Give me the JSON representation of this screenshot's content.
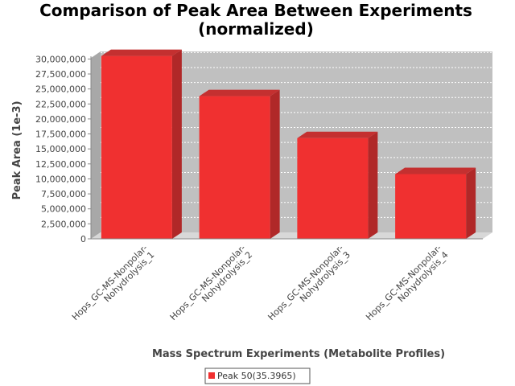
{
  "chart_data": {
    "type": "bar",
    "title": "Comparison of Peak Area Between Experiments",
    "subtitle": "(normalized)",
    "xlabel": "Mass Spectrum Experiments (Metabolite Profiles)",
    "ylabel": "Peak Area (1e-3)",
    "categories": [
      [
        "Hops_GC-MS-Nonpolar-",
        "Nohydrolysis_1"
      ],
      [
        "Hops_GC-MS-Nonpolar-",
        "Nohydrolysis_2"
      ],
      [
        "Hops_GC-MS-Nonpolar-",
        "Nohydrolysis_3"
      ],
      [
        "Hops_GC-MS-Nonpolar-",
        "Nohydrolysis_4"
      ]
    ],
    "series": [
      {
        "name": "Peak 50(35.3965)",
        "color": "#f03030",
        "values": [
          30500000,
          23800000,
          16800000,
          10800000
        ]
      }
    ],
    "ylim": [
      0,
      30000000
    ],
    "yticks": [
      0,
      2500000,
      5000000,
      7500000,
      10000000,
      12500000,
      15000000,
      17500000,
      20000000,
      22500000,
      25000000,
      27500000,
      30000000
    ],
    "ytick_labels": [
      "0",
      "2,500,000",
      "5,000,000",
      "7,500,000",
      "10,000,000",
      "12,500,000",
      "15,000,000",
      "17,500,000",
      "20,000,000",
      "22,500,000",
      "25,000,000",
      "27,500,000",
      "30,000,000"
    ],
    "grid": true,
    "legend": "bottom",
    "plot_background": "#c0c0c0"
  }
}
